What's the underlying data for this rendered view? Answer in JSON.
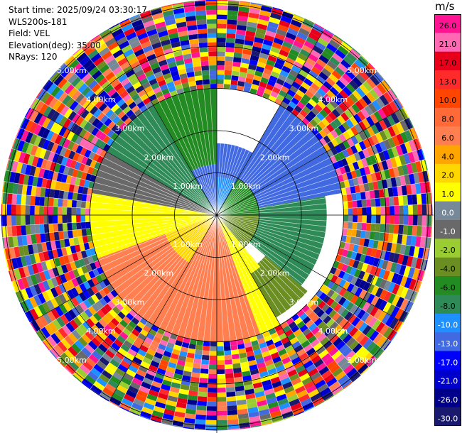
{
  "header": {
    "start_time": "Start time: 2025/09/24 03:30:17",
    "instrument": "WLS200s-181",
    "field": "Field: VEL",
    "elevation": "Elevation(deg): 35.00",
    "nrays": "NRays: 120"
  },
  "colorbar": {
    "unit": "m/s",
    "bins": [
      {
        "label": "26.0",
        "color": "#ff1493"
      },
      {
        "label": "21.0",
        "color": "#ff69b4"
      },
      {
        "label": "17.0",
        "color": "#e8001a"
      },
      {
        "label": "13.0",
        "color": "#ff2a2a"
      },
      {
        "label": "10.0",
        "color": "#ff4500"
      },
      {
        "label": "8.0",
        "color": "#ff6a38"
      },
      {
        "label": "6.0",
        "color": "#ff7f50"
      },
      {
        "label": "4.0",
        "color": "#ffa500"
      },
      {
        "label": "2.0",
        "color": "#ffd700"
      },
      {
        "label": "1.0",
        "color": "#ffff00"
      },
      {
        "label": "0.0",
        "color": "#778899"
      },
      {
        "label": "-1.0",
        "color": "#696969"
      },
      {
        "label": "-2.0",
        "color": "#9acd32"
      },
      {
        "label": "-4.0",
        "color": "#6b8e23"
      },
      {
        "label": "-6.0",
        "color": "#228b22"
      },
      {
        "label": "-8.0",
        "color": "#2e8b57"
      },
      {
        "label": "-10.0",
        "color": "#1e90ff"
      },
      {
        "label": "-13.0",
        "color": "#4169e1"
      },
      {
        "label": "-17.0",
        "color": "#0000ff"
      },
      {
        "label": "-21.0",
        "color": "#0000cd"
      },
      {
        "label": "-26.0",
        "color": "#00008b"
      },
      {
        "label": "-30.0",
        "color": "#191970"
      }
    ]
  },
  "chart_data": {
    "type": "heatmap",
    "subtype": "polar-ppi",
    "field": "VEL",
    "units": "m/s",
    "nrays": 120,
    "range_rings": [
      {
        "value": 1,
        "label": "1.00km"
      },
      {
        "value": 2,
        "label": "2.00km"
      },
      {
        "value": 3,
        "label": "3.00km"
      },
      {
        "value": 4,
        "label": "4.00km"
      },
      {
        "value": 5,
        "label": "5.00km"
      }
    ],
    "max_range_km": 5.1,
    "noise_start_km": 3.0,
    "sectors": [
      {
        "azimuth_deg": [
          0,
          30
        ],
        "range_km": [
          0.1,
          0.9
        ],
        "velocity": -10.0
      },
      {
        "azimuth_deg": [
          0,
          30
        ],
        "range_km": [
          0.9,
          1.7
        ],
        "velocity": -11.0
      },
      {
        "azimuth_deg": [
          30,
          90
        ],
        "range_km": [
          0.1,
          1.0
        ],
        "velocity": -6.0
      },
      {
        "azimuth_deg": [
          30,
          80
        ],
        "range_km": [
          1.0,
          3.0
        ],
        "velocity": -13.0
      },
      {
        "azimuth_deg": [
          80,
          130
        ],
        "range_km": [
          1.0,
          2.6
        ],
        "velocity": -6.5
      },
      {
        "azimuth_deg": [
          90,
          140
        ],
        "range_km": [
          0.1,
          1.0
        ],
        "velocity": -2.5
      },
      {
        "azimuth_deg": [
          130,
          150
        ],
        "range_km": [
          1.5,
          2.8
        ],
        "velocity": -3.5
      },
      {
        "azimuth_deg": [
          140,
          160
        ],
        "range_km": [
          0.1,
          1.6
        ],
        "velocity": 1.5
      },
      {
        "azimuth_deg": [
          150,
          175
        ],
        "range_km": [
          1.6,
          3.0
        ],
        "velocity": 1.2
      },
      {
        "azimuth_deg": [
          160,
          210
        ],
        "range_km": [
          0.1,
          3.0
        ],
        "velocity": 7.0
      },
      {
        "azimuth_deg": [
          210,
          250
        ],
        "range_km": [
          0.1,
          1.3
        ],
        "velocity": 3.0
      },
      {
        "azimuth_deg": [
          210,
          250
        ],
        "range_km": [
          1.3,
          3.0
        ],
        "velocity": 7.0
      },
      {
        "azimuth_deg": [
          250,
          280
        ],
        "range_km": [
          0.1,
          3.0
        ],
        "velocity": 1.5
      },
      {
        "azimuth_deg": [
          280,
          300
        ],
        "range_km": [
          0.1,
          3.0
        ],
        "velocity": -0.5
      },
      {
        "azimuth_deg": [
          300,
          330
        ],
        "range_km": [
          0.1,
          3.0
        ],
        "velocity": -7.0
      },
      {
        "azimuth_deg": [
          330,
          360
        ],
        "range_km": [
          0.1,
          1.2
        ],
        "velocity": -11.0
      },
      {
        "azimuth_deg": [
          330,
          360
        ],
        "range_km": [
          1.2,
          3.0
        ],
        "velocity": -6.0
      }
    ]
  }
}
